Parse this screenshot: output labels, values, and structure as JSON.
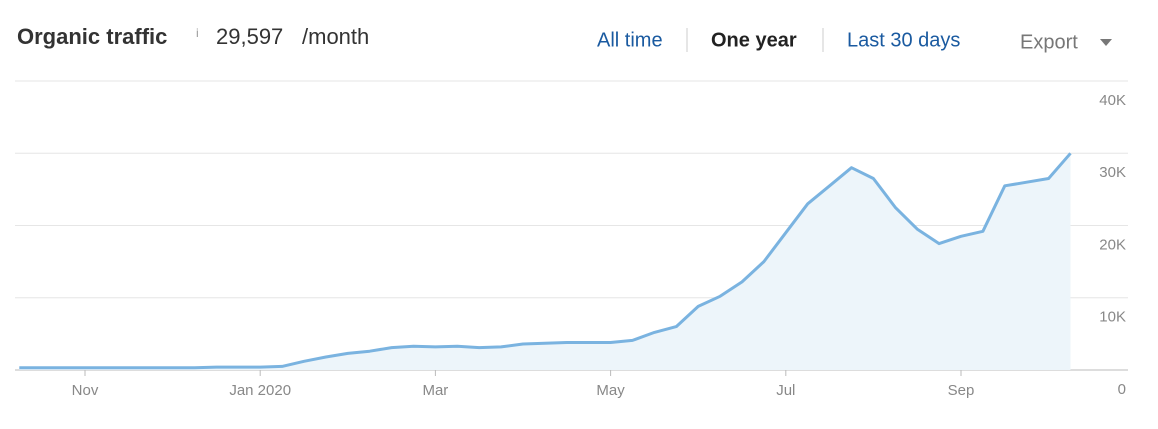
{
  "header": {
    "title": "Organic traffic",
    "info": "i",
    "value": "29,597",
    "unit": "/month",
    "ranges": [
      "All time",
      "One year",
      "Last 30 days"
    ],
    "active_range": 1,
    "export": "Export"
  },
  "chart_data": {
    "type": "area",
    "color": "#7ab3e0",
    "fill": "#edf5fa",
    "categories": [
      null,
      null,
      null,
      "Nov",
      null,
      null,
      null,
      null,
      null,
      null,
      null,
      "Jan 2020",
      null,
      null,
      null,
      null,
      null,
      null,
      null,
      "Mar",
      null,
      null,
      null,
      null,
      null,
      null,
      null,
      "May",
      null,
      null,
      null,
      null,
      null,
      null,
      null,
      "Jul",
      null,
      null,
      null,
      null,
      null,
      null,
      null,
      "Sep",
      null,
      null,
      null,
      null,
      null
    ],
    "values": [
      300,
      300,
      300,
      300,
      300,
      300,
      300,
      300,
      300,
      400,
      400,
      400,
      500,
      1200,
      1800,
      2300,
      2600,
      3100,
      3300,
      3200,
      3300,
      3100,
      3200,
      3600,
      3700,
      3800,
      3800,
      3800,
      4100,
      5200,
      6000,
      8800,
      10200,
      12200,
      15000,
      19000,
      23000,
      25500,
      28000,
      26500,
      22500,
      19500,
      17500,
      18500,
      19200,
      25500,
      26000,
      26500,
      30000
    ],
    "ylim": [
      0,
      40000
    ],
    "yticks": [
      0,
      {
        "value": 10000,
        "label": "10K"
      },
      {
        "value": 20000,
        "label": "20K"
      },
      {
        "value": 30000,
        "label": "30K"
      },
      {
        "value": 40000,
        "label": "40K"
      }
    ],
    "grid": true
  }
}
